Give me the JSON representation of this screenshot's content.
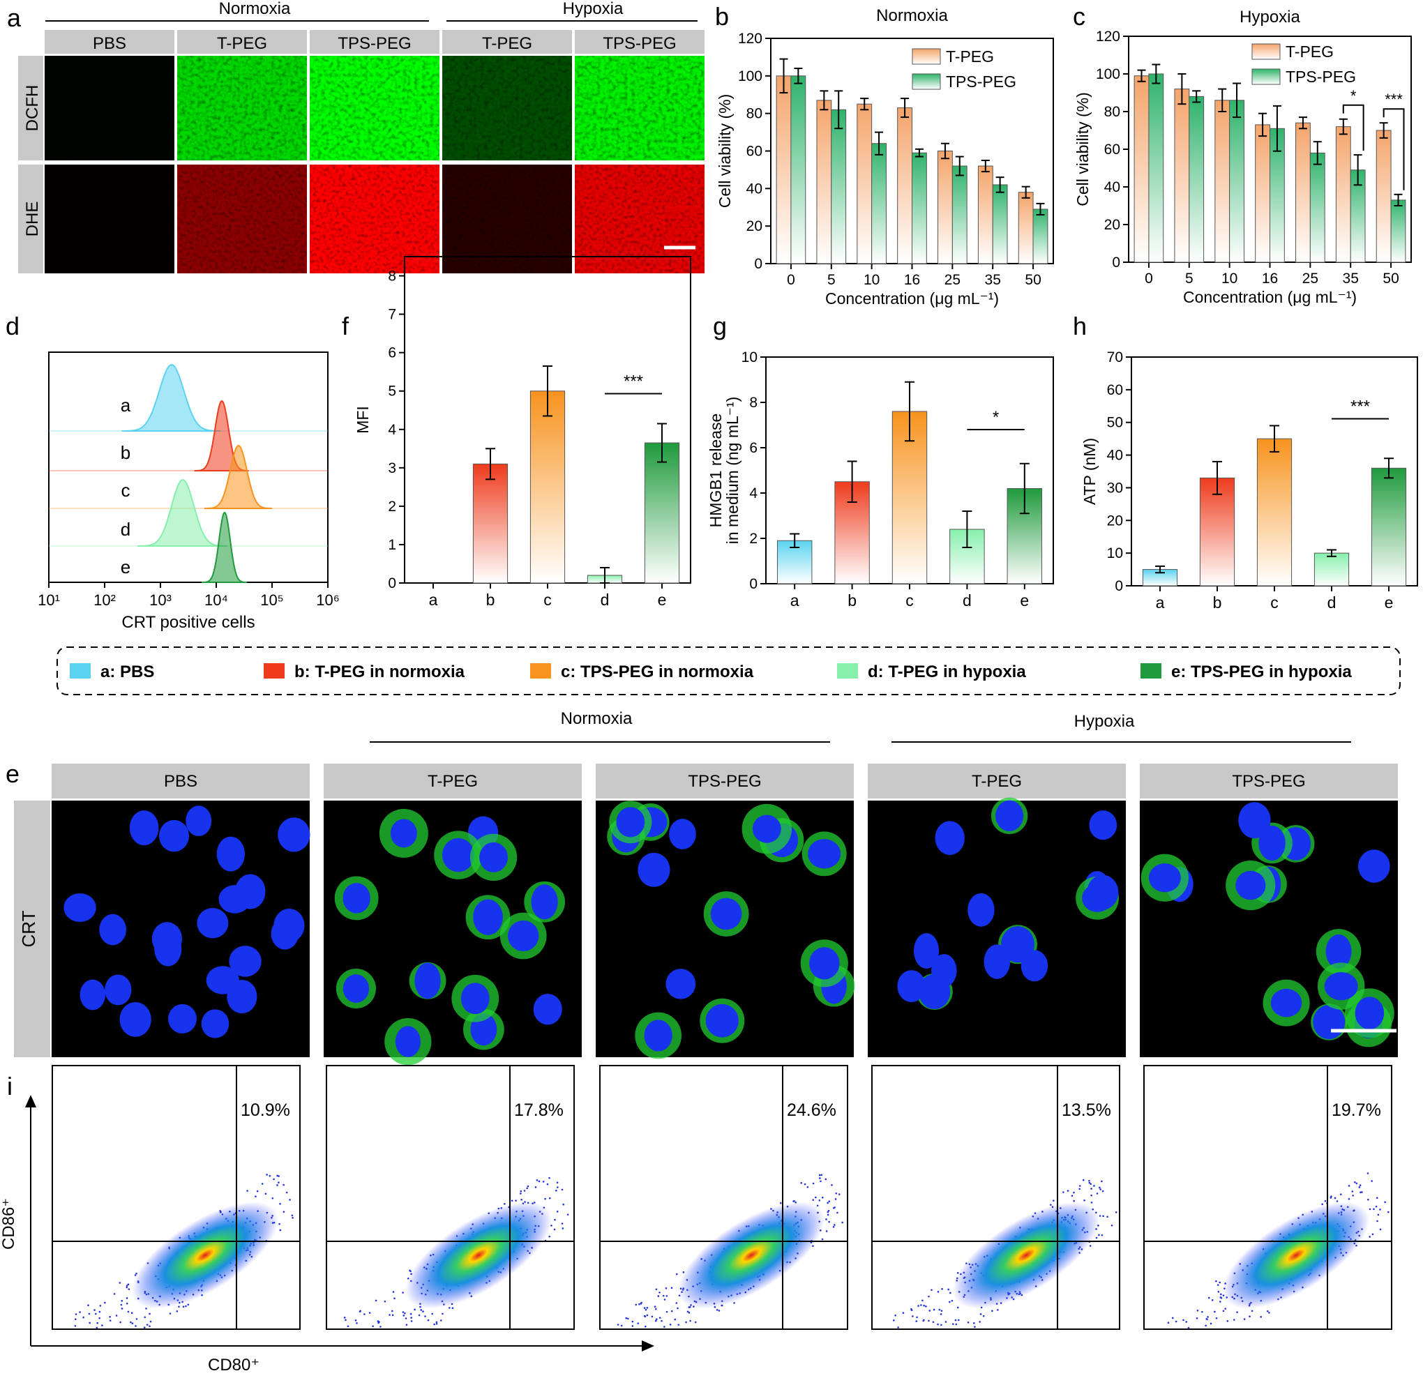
{
  "figure": {
    "panel_letters": {
      "a": "a",
      "b": "b",
      "c": "c",
      "d": "d",
      "f": "f",
      "g": "g",
      "h": "h",
      "e": "e",
      "i": "i"
    },
    "panel_a": {
      "groups": [
        "Normoxia",
        "Hypoxia"
      ],
      "columns": [
        "PBS",
        "T-PEG",
        "TPS-PEG",
        "T-PEG",
        "TPS-PEG"
      ],
      "rows": [
        "DCFH",
        "DHE"
      ]
    },
    "panel_e": {
      "groups": [
        "Normoxia",
        "Hypoxia"
      ],
      "columns": [
        "PBS",
        "T-PEG",
        "TPS-PEG",
        "T-PEG",
        "TPS-PEG"
      ],
      "row_label": "CRT"
    },
    "panel_d": {
      "xlabel": "CRT positive cells",
      "curve_labels": [
        "a",
        "b",
        "c",
        "d",
        "e"
      ],
      "ticks": [
        "10¹",
        "10²",
        "10³",
        "10⁴",
        "10⁵",
        "10⁶"
      ]
    },
    "legend": [
      {
        "key": "a",
        "label": "a: PBS",
        "color": "#5bd3f0"
      },
      {
        "key": "b",
        "label": "b: T-PEG in normoxia",
        "color": "#ee3b1c"
      },
      {
        "key": "c",
        "label": "c: TPS-PEG in normoxia",
        "color": "#f7931e"
      },
      {
        "key": "d",
        "label": "d: T-PEG in hypoxia",
        "color": "#86efac"
      },
      {
        "key": "e",
        "label": "e: TPS-PEG in hypoxia",
        "color": "#1f9a3c"
      }
    ],
    "panel_i": {
      "percentages": [
        "10.9%",
        "17.8%",
        "24.6%",
        "13.5%",
        "19.7%"
      ],
      "xlabel": "CD80⁺",
      "ylabel": "CD86⁺"
    }
  },
  "chart_data": [
    {
      "id": "b",
      "type": "bar",
      "title": "Normoxia",
      "xlabel": "Concentration (μg mL⁻¹)",
      "ylabel": "Cell viability (%)",
      "ylim": [
        0,
        120
      ],
      "yticks": [
        0,
        20,
        40,
        60,
        80,
        100,
        120
      ],
      "categories": [
        "0",
        "5",
        "10",
        "16",
        "25",
        "35",
        "50"
      ],
      "series": [
        {
          "name": "T-PEG",
          "color": "#f4a46a",
          "values": [
            100,
            87,
            85,
            83,
            60,
            52,
            38
          ],
          "errors": [
            9,
            5,
            3,
            5,
            4,
            3,
            3
          ]
        },
        {
          "name": "TPS-PEG",
          "color": "#2fb36b",
          "values": [
            100,
            82,
            64,
            59,
            52,
            42,
            29
          ],
          "errors": [
            4,
            10,
            6,
            2,
            5,
            4,
            3
          ]
        }
      ],
      "legend_position": "top-right",
      "significance": []
    },
    {
      "id": "c",
      "type": "bar",
      "title": "Hypoxia",
      "xlabel": "Concentration (μg mL⁻¹)",
      "ylabel": "Cell viability (%)",
      "ylim": [
        0,
        120
      ],
      "yticks": [
        0,
        20,
        40,
        60,
        80,
        100,
        120
      ],
      "categories": [
        "0",
        "5",
        "10",
        "16",
        "25",
        "35",
        "50"
      ],
      "series": [
        {
          "name": "T-PEG",
          "color": "#f4a46a",
          "values": [
            99,
            92,
            86,
            73,
            74,
            72,
            70
          ],
          "errors": [
            3,
            8,
            6,
            6,
            3,
            4,
            4
          ]
        },
        {
          "name": "TPS-PEG",
          "color": "#2fb36b",
          "values": [
            100,
            88,
            86,
            71,
            58,
            49,
            33
          ],
          "errors": [
            5,
            3,
            9,
            12,
            6,
            8,
            3
          ]
        }
      ],
      "legend_position": "top-right",
      "significance": [
        {
          "index": 5,
          "label": "*"
        },
        {
          "index": 6,
          "label": "***"
        }
      ]
    },
    {
      "id": "f",
      "type": "bar",
      "xlabel": "",
      "ylabel": "MFI",
      "ylim": [
        0,
        8.5
      ],
      "yticks": [
        0,
        1,
        2,
        3,
        4,
        5,
        6,
        7,
        8
      ],
      "categories": [
        "a",
        "b",
        "c",
        "d",
        "e"
      ],
      "values": [
        0,
        3.1,
        5.0,
        0.2,
        3.65
      ],
      "errors": [
        0,
        0.4,
        0.65,
        0.2,
        0.5
      ],
      "colors": [
        "#5bd3f0",
        "#ee3b1c",
        "#f7931e",
        "#86efac",
        "#1f9a3c"
      ],
      "significance": [
        {
          "from": 3,
          "to": 4,
          "label": "***"
        }
      ]
    },
    {
      "id": "g",
      "type": "bar",
      "xlabel": "",
      "ylabel": "HMGB1 release in medium (ng mL⁻¹)",
      "ylim": [
        0,
        10
      ],
      "yticks": [
        0,
        2,
        4,
        6,
        8,
        10
      ],
      "categories": [
        "a",
        "b",
        "c",
        "d",
        "e"
      ],
      "values": [
        1.9,
        4.5,
        7.6,
        2.4,
        4.2
      ],
      "errors": [
        0.3,
        0.9,
        1.3,
        0.8,
        1.1
      ],
      "colors": [
        "#5bd3f0",
        "#ee3b1c",
        "#f7931e",
        "#86efac",
        "#1f9a3c"
      ],
      "significance": [
        {
          "from": 3,
          "to": 4,
          "label": "*"
        }
      ]
    },
    {
      "id": "h",
      "type": "bar",
      "xlabel": "",
      "ylabel": "ATP (nM)",
      "ylim": [
        0,
        70
      ],
      "yticks": [
        0,
        10,
        20,
        30,
        40,
        50,
        60,
        70
      ],
      "categories": [
        "a",
        "b",
        "c",
        "d",
        "e"
      ],
      "values": [
        5,
        33,
        45,
        10,
        36
      ],
      "errors": [
        1,
        5,
        4,
        1,
        3
      ],
      "colors": [
        "#5bd3f0",
        "#ee3b1c",
        "#f7931e",
        "#86efac",
        "#1f9a3c"
      ],
      "significance": [
        {
          "from": 3,
          "to": 4,
          "label": "***"
        }
      ]
    }
  ]
}
